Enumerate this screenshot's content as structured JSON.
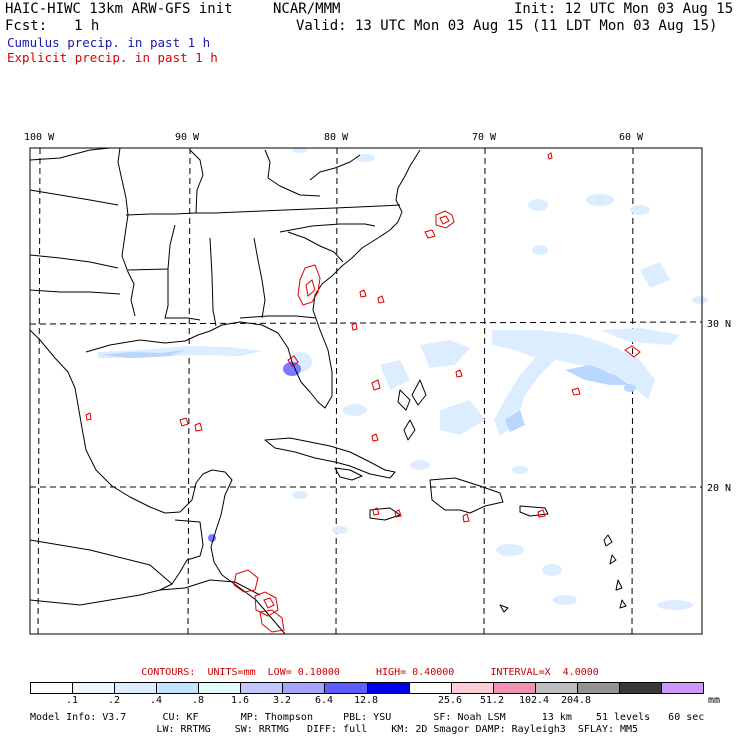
{
  "header": {
    "title_left": "HAIC-HIWC 13km ARW-GFS init",
    "center_org": "NCAR/MMM",
    "init": "Init: 12 UTC Mon 03 Aug 15",
    "fcst_label": "Fcst:",
    "fcst_value": "1 h",
    "valid": "Valid: 13 UTC Mon 03 Aug 15 (11 LDT Mon 03 Aug 15)"
  },
  "legend": {
    "cumulus": "Cumulus precip. in past 1 h",
    "cumulus_color": "#1a1aa6",
    "explicit": "Explicit precip. in past 1 h",
    "explicit_color": "#dd0000"
  },
  "axes": {
    "lon_labels": [
      "100 W",
      "90 W",
      "80 W",
      "70 W",
      "60 W"
    ],
    "lat_labels": [
      "30 N",
      "20 N"
    ]
  },
  "contours_line": "CONTOURS:  UNITS=mm  LOW= 0.10000      HIGH= 0.40000      INTERVAL=X  4.0000",
  "colorbar": {
    "unit": "mm",
    "colors": [
      "#ffffff",
      "#eef6ff",
      "#dcedff",
      "#c5e2ff",
      "#e2fcfc",
      "#c6c6ff",
      "#a3a3ff",
      "#5c5cff",
      "#0000ee",
      "#ffffff",
      "#ffcfd8",
      "#f090b4",
      "#bdbdbd",
      "#939393",
      "#3a3a3a",
      "#cc99ff"
    ],
    "labels": [
      ".1",
      ".2",
      ".4",
      ".8",
      "1.6",
      "3.2",
      "6.4",
      "12.8",
      "25.6",
      "51.2",
      "102.4",
      "204.8"
    ]
  },
  "footer": {
    "line1": "Model Info: V3.7      CU: KF       MP: Thompson     PBL: YSU       SF: Noah LSM      13 km    51 levels   60 sec",
    "line2": "                     LW: RRTMG    SW: RRTMG   DIFF: full    KM: 2D Smagor DAMP: Rayleigh3  SFLAY: MM5"
  }
}
